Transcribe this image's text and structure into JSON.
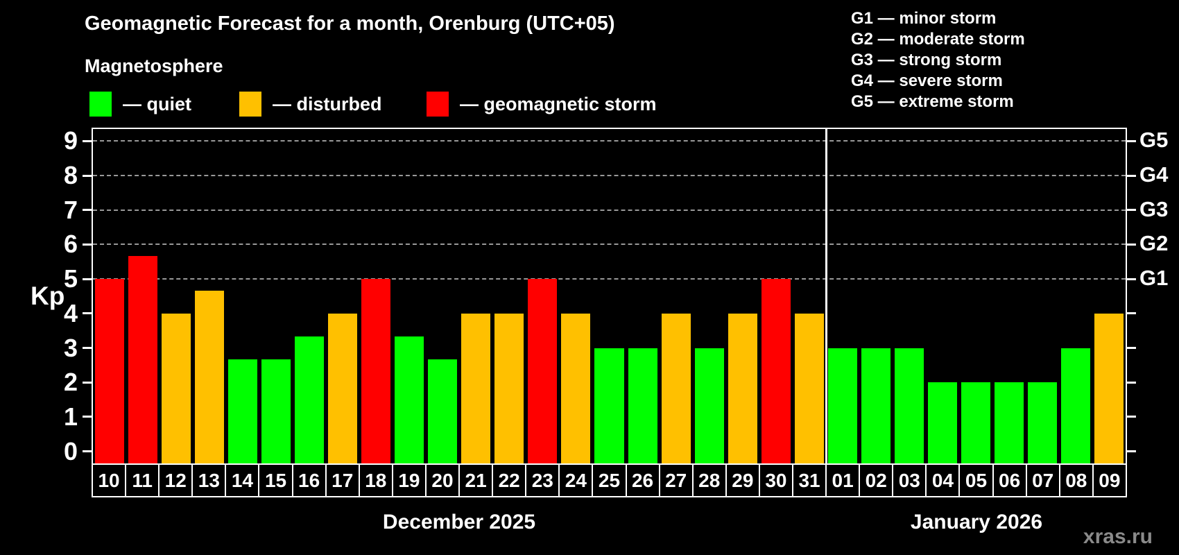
{
  "title": "Geomagnetic Forecast for a month, Orenburg (UTC+05)",
  "subtitle": "Magnetosphere",
  "bar_legend": [
    {
      "key": "quiet",
      "label": "— quiet",
      "color": "#00ff00"
    },
    {
      "key": "disturbed",
      "label": "— disturbed",
      "color": "#ffc000"
    },
    {
      "key": "storm",
      "label": "— geomagnetic storm",
      "color": "#ff0000"
    }
  ],
  "storm_scale_legend": [
    "G1 — minor storm",
    "G2 — moderate storm",
    "G3 — strong storm",
    "G4 — severe storm",
    "G5 — extreme storm"
  ],
  "watermark": "xras.ru",
  "chart_data": {
    "type": "bar",
    "title": "Geomagnetic Forecast for a month, Orenburg (UTC+05)",
    "ylabel": "Kp",
    "ylim": [
      -0.35,
      9.35
    ],
    "yticks": [
      0,
      1,
      2,
      3,
      4,
      5,
      6,
      7,
      8,
      9
    ],
    "gridlines": [
      5,
      6,
      7,
      8,
      9
    ],
    "grid_style": "horizontal dashed gray at Kp 5-9 (G1-G5 levels)",
    "right_axis_labels": [
      {
        "value": 5,
        "label": "G1"
      },
      {
        "value": 6,
        "label": "G2"
      },
      {
        "value": 7,
        "label": "G3"
      },
      {
        "value": 8,
        "label": "G4"
      },
      {
        "value": 9,
        "label": "G5"
      }
    ],
    "color_map": {
      "quiet": "#00ff00",
      "disturbed": "#ffc000",
      "storm": "#ff0000"
    },
    "months": [
      {
        "label": "December 2025",
        "days": [
          {
            "day": "10",
            "kp": 5.0,
            "status": "storm"
          },
          {
            "day": "11",
            "kp": 5.67,
            "status": "storm"
          },
          {
            "day": "12",
            "kp": 4.0,
            "status": "disturbed"
          },
          {
            "day": "13",
            "kp": 4.67,
            "status": "disturbed"
          },
          {
            "day": "14",
            "kp": 2.67,
            "status": "quiet"
          },
          {
            "day": "15",
            "kp": 2.67,
            "status": "quiet"
          },
          {
            "day": "16",
            "kp": 3.33,
            "status": "quiet"
          },
          {
            "day": "17",
            "kp": 4.0,
            "status": "disturbed"
          },
          {
            "day": "18",
            "kp": 5.0,
            "status": "storm"
          },
          {
            "day": "19",
            "kp": 3.33,
            "status": "quiet"
          },
          {
            "day": "20",
            "kp": 2.67,
            "status": "quiet"
          },
          {
            "day": "21",
            "kp": 4.0,
            "status": "disturbed"
          },
          {
            "day": "22",
            "kp": 4.0,
            "status": "disturbed"
          },
          {
            "day": "23",
            "kp": 5.0,
            "status": "storm"
          },
          {
            "day": "24",
            "kp": 4.0,
            "status": "disturbed"
          },
          {
            "day": "25",
            "kp": 3.0,
            "status": "quiet"
          },
          {
            "day": "26",
            "kp": 3.0,
            "status": "quiet"
          },
          {
            "day": "27",
            "kp": 4.0,
            "status": "disturbed"
          },
          {
            "day": "28",
            "kp": 3.0,
            "status": "quiet"
          },
          {
            "day": "29",
            "kp": 4.0,
            "status": "disturbed"
          },
          {
            "day": "30",
            "kp": 5.0,
            "status": "storm"
          },
          {
            "day": "31",
            "kp": 4.0,
            "status": "disturbed"
          }
        ]
      },
      {
        "label": "January 2026",
        "days": [
          {
            "day": "01",
            "kp": 3.0,
            "status": "quiet"
          },
          {
            "day": "02",
            "kp": 3.0,
            "status": "quiet"
          },
          {
            "day": "03",
            "kp": 3.0,
            "status": "quiet"
          },
          {
            "day": "04",
            "kp": 2.0,
            "status": "quiet"
          },
          {
            "day": "05",
            "kp": 2.0,
            "status": "quiet"
          },
          {
            "day": "06",
            "kp": 2.0,
            "status": "quiet"
          },
          {
            "day": "07",
            "kp": 2.0,
            "status": "quiet"
          },
          {
            "day": "08",
            "kp": 3.0,
            "status": "quiet"
          },
          {
            "day": "09",
            "kp": 4.0,
            "status": "disturbed"
          }
        ]
      }
    ]
  }
}
